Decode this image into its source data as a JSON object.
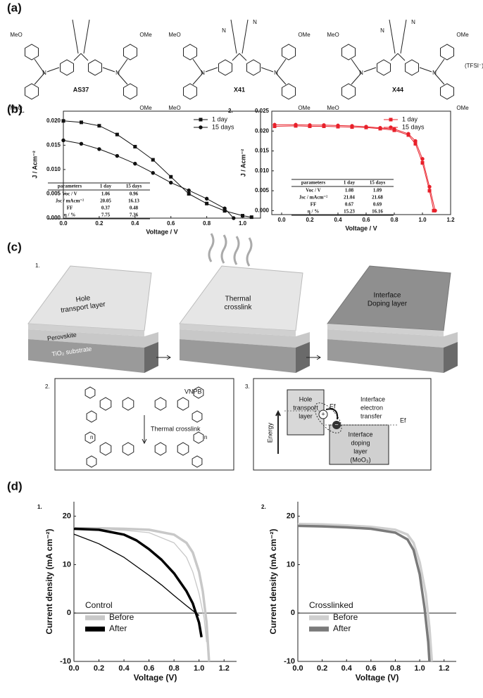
{
  "panels": [
    "(a)",
    "(b)",
    "(c)",
    "(d)"
  ],
  "molecules": [
    {
      "name": "AS37",
      "labels": [
        "MeO",
        "MeO",
        "OMe",
        "OMe",
        "N",
        "N"
      ]
    },
    {
      "name": "X41",
      "labels": [
        "MeO",
        "MeO",
        "OMe",
        "OMe",
        "N",
        "N",
        "N",
        "N"
      ]
    },
    {
      "name": "X44",
      "labels": [
        "MeO",
        "MeO",
        "OMe",
        "OMe",
        "N",
        "N",
        "N",
        "N"
      ],
      "counterion": "(TFSI⁻)₂"
    }
  ],
  "chart_data": [
    {
      "type": "line",
      "panel_label": "1.",
      "xlabel": "Voltage / V",
      "ylabel": "J / Acm⁻²",
      "frame": true,
      "xlim": [
        0,
        1.1
      ],
      "xticks": [
        {
          "value": 0,
          "label": "0.0"
        },
        0.2,
        0.4,
        0.6,
        0.8,
        {
          "value": 1,
          "label": "1.0"
        }
      ],
      "ylim": [
        0,
        0.022
      ],
      "yticks": [
        {
          "value": 0,
          "label": "0.000"
        },
        0.005,
        {
          "value": 0.01,
          "label": "0.010"
        },
        0.015,
        {
          "value": 0.02,
          "label": "0.020"
        }
      ],
      "legend": "upper right",
      "series": [
        {
          "name": "1 day",
          "color": "#111111",
          "marker": "square",
          "x": [
            0,
            0.1,
            0.2,
            0.3,
            0.4,
            0.5,
            0.6,
            0.7,
            0.8,
            0.9,
            1.0,
            1.05
          ],
          "values": [
            0.02,
            0.0197,
            0.019,
            0.0172,
            0.0147,
            0.012,
            0.0085,
            0.005,
            0.003,
            0.0015,
            0.0005,
            0.0002
          ]
        },
        {
          "name": "15 days",
          "color": "#111111",
          "marker": "circle",
          "x": [
            0,
            0.1,
            0.2,
            0.3,
            0.4,
            0.5,
            0.6,
            0.7,
            0.8,
            0.9,
            0.95
          ],
          "values": [
            0.016,
            0.0153,
            0.0142,
            0.0128,
            0.0112,
            0.0093,
            0.0073,
            0.0057,
            0.004,
            0.002,
            0.0
          ]
        }
      ],
      "table": {
        "header": [
          "parameters",
          "1 day",
          "15 days"
        ],
        "rows": [
          [
            "Voc / V",
            "1.06",
            "0.96"
          ],
          [
            "Jsc / mAcm⁻²",
            "20.05",
            "16.13"
          ],
          [
            "FF",
            "0.37",
            "0.48"
          ],
          [
            "η / %",
            "7.75",
            "7.36"
          ]
        ]
      }
    },
    {
      "type": "line",
      "panel_label": "2.",
      "xlabel": "Voltage / V",
      "ylabel": "J / Acm⁻²",
      "frame": true,
      "xlim": [
        -0.07,
        1.2
      ],
      "xticks": [
        {
          "value": 0,
          "label": "0.0"
        },
        0.2,
        0.4,
        0.6,
        0.8,
        {
          "value": 1,
          "label": "1.0"
        },
        1.2
      ],
      "ylim": [
        -0.001,
        0.025
      ],
      "yticks": [
        {
          "value": 0,
          "label": "0.000"
        },
        0.005,
        {
          "value": 0.01,
          "label": "0.010"
        },
        0.015,
        {
          "value": 0.02,
          "label": "0.020"
        },
        0.025
      ],
      "legend": "upper right",
      "series": [
        {
          "name": "1 day",
          "color": "#e8202a",
          "marker": "square",
          "x": [
            -0.05,
            0.1,
            0.2,
            0.3,
            0.4,
            0.5,
            0.6,
            0.7,
            0.8,
            0.9,
            0.95,
            1.0,
            1.05,
            1.08
          ],
          "values": [
            0.0212,
            0.0213,
            0.0212,
            0.0212,
            0.0211,
            0.021,
            0.0209,
            0.0206,
            0.0202,
            0.019,
            0.0168,
            0.012,
            0.005,
            0.0
          ]
        },
        {
          "name": "15 days",
          "color": "#e8202a",
          "marker": "circle",
          "x": [
            -0.05,
            0.1,
            0.2,
            0.3,
            0.4,
            0.5,
            0.6,
            0.7,
            0.8,
            0.9,
            0.95,
            1.0,
            1.05,
            1.09
          ],
          "values": [
            0.0216,
            0.0216,
            0.0215,
            0.0215,
            0.0214,
            0.0213,
            0.0211,
            0.0208,
            0.0205,
            0.0193,
            0.0175,
            0.013,
            0.006,
            0.0
          ]
        }
      ],
      "table": {
        "header": [
          "parameters",
          "1 day",
          "15 days"
        ],
        "rows": [
          [
            "Voc / V",
            "1.08",
            "1.09"
          ],
          [
            "Jsc / mAcm⁻²",
            "21.04",
            "21.68"
          ],
          [
            "FF",
            "0.67",
            "0.69"
          ],
          [
            "η / %",
            "15.23",
            "16.16"
          ]
        ]
      }
    },
    {
      "type": "line",
      "panel_label": "1.",
      "xlabel": "Voltage (V)",
      "ylabel": "Current density (mA cm⁻²)",
      "frame": false,
      "zero_line": true,
      "xlim": [
        0,
        1.3
      ],
      "xticks": [
        {
          "value": 0,
          "label": "0.0"
        },
        0.2,
        0.4,
        0.6,
        0.8,
        {
          "value": 1,
          "label": "1.0"
        },
        1.2
      ],
      "ylim": [
        -10,
        23
      ],
      "yticks": [
        -10,
        0,
        10,
        20
      ],
      "legend": "lower left",
      "legend_title": "Control",
      "series": [
        {
          "name": "Before",
          "color": "#c8c8c8",
          "scans": [
            {
              "x": [
                0,
                0.2,
                0.4,
                0.6,
                0.8,
                0.9,
                0.95,
                1.0,
                1.03,
                1.06,
                1.08
              ],
              "values": [
                17.5,
                17.5,
                17.4,
                17.2,
                16.2,
                14.5,
                12.5,
                8.5,
                4.5,
                -2,
                -10
              ]
            },
            {
              "x": [
                0,
                0.2,
                0.4,
                0.6,
                0.8,
                0.9,
                0.95,
                1.0,
                1.04,
                1.06
              ],
              "values": [
                17.4,
                17.3,
                17.1,
                16.6,
                14.5,
                11.5,
                8.5,
                4,
                -1,
                -6
              ]
            }
          ]
        },
        {
          "name": "After",
          "color": "#000000",
          "scans": [
            {
              "x": [
                0,
                0.2,
                0.4,
                0.5,
                0.6,
                0.7,
                0.8,
                0.9,
                0.95,
                1.0,
                1.02
              ],
              "values": [
                17.4,
                17.2,
                16.2,
                15,
                13.2,
                11,
                8.2,
                4.5,
                2,
                -2,
                -5
              ]
            },
            {
              "x": [
                0,
                0.2,
                0.4,
                0.6,
                0.7,
                0.8,
                0.9,
                0.95,
                1.0
              ],
              "values": [
                16.3,
                14.3,
                11.5,
                7.8,
                5.8,
                3.6,
                1.5,
                0.5,
                -0.5
              ]
            }
          ]
        }
      ]
    },
    {
      "type": "line",
      "panel_label": "2.",
      "xlabel": "Voltage (V)",
      "ylabel": "Current density (mA cm⁻²)",
      "frame": false,
      "zero_line": true,
      "xlim": [
        0,
        1.3
      ],
      "xticks": [
        {
          "value": 0,
          "label": "0.0"
        },
        0.2,
        0.4,
        0.6,
        0.8,
        {
          "value": 1,
          "label": "1.0"
        },
        1.2
      ],
      "ylim": [
        -10,
        23
      ],
      "yticks": [
        -10,
        0,
        10,
        20
      ],
      "legend": "lower left",
      "legend_title": "Crosslinked",
      "series": [
        {
          "name": "Before",
          "color": "#cfcfcf",
          "scans": [
            {
              "x": [
                0,
                0.2,
                0.4,
                0.6,
                0.8,
                0.9,
                0.95,
                1.0,
                1.05,
                1.08,
                1.1
              ],
              "values": [
                18.4,
                18.3,
                18.1,
                17.8,
                17.2,
                16.2,
                14.5,
                10.5,
                4,
                -3,
                -10
              ]
            }
          ]
        },
        {
          "name": "After",
          "color": "#7a7a7a",
          "scans": [
            {
              "x": [
                0,
                0.2,
                0.4,
                0.6,
                0.8,
                0.9,
                0.95,
                1.0,
                1.04,
                1.07,
                1.08
              ],
              "values": [
                18.0,
                17.9,
                17.7,
                17.4,
                16.6,
                15.2,
                13,
                8,
                1,
                -6,
                -10
              ]
            }
          ]
        }
      ]
    }
  ],
  "schematic": {
    "label": "1.",
    "hole_transport": [
      "Hole",
      "transport layer"
    ],
    "perovskite": "Perovskite",
    "substrate": "TiO₂ substrate",
    "crosslink": [
      "Thermal",
      "crosslink"
    ],
    "doping": [
      "Interface",
      "Doping layer"
    ]
  },
  "vnpb": {
    "label": "2.",
    "name": "VNPB",
    "step": "Thermal crosslink",
    "n": [
      "n",
      "n"
    ]
  },
  "energy": {
    "label": "3.",
    "htl": [
      "Hole",
      "transport",
      "layer"
    ],
    "ef": [
      "Ef",
      "Ef"
    ],
    "transfer": [
      "Interface",
      "electron",
      "transfer"
    ],
    "axis": "Energy",
    "doping": [
      "Interface",
      "doping",
      "layer",
      "(MoO₃)"
    ],
    "charges": [
      "+",
      "−"
    ]
  }
}
